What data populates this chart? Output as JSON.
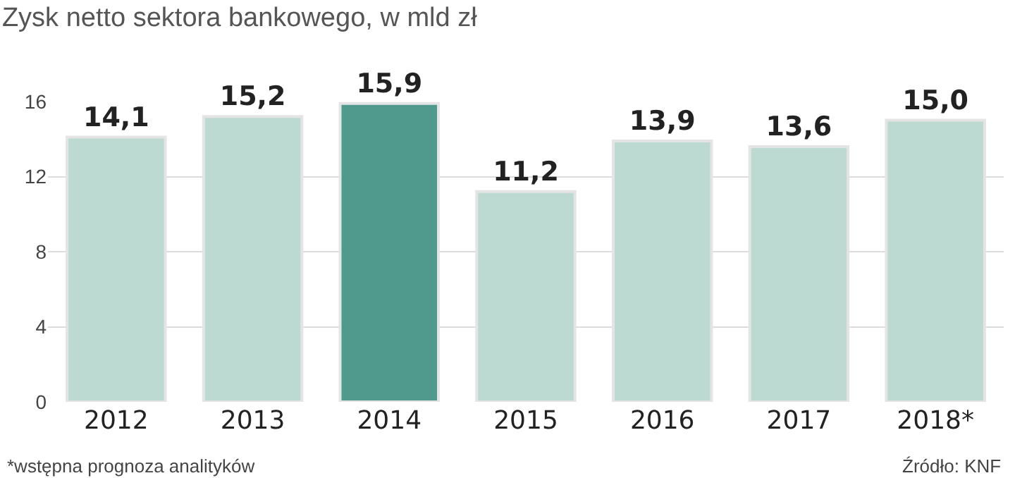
{
  "chart_data": {
    "type": "bar",
    "title": "Zysk netto sektora bankowego, w mld zł",
    "categories": [
      "2012",
      "2013",
      "2014",
      "2015",
      "2016",
      "2017",
      "2018*"
    ],
    "values": [
      14.1,
      15.2,
      15.9,
      11.2,
      13.9,
      13.6,
      15.0
    ],
    "value_labels": [
      "14,1",
      "15,2",
      "15,9",
      "11,2",
      "13,9",
      "13,6",
      "15,0"
    ],
    "colors": [
      "#bcdad1",
      "#bcdad1",
      "#4f9a8c",
      "#bcdad1",
      "#bcdad1",
      "#bcdad1",
      "#bcdad1"
    ],
    "ylim": [
      0,
      16
    ],
    "yticks": [
      0,
      4,
      8,
      12,
      16
    ],
    "grid": "y",
    "annotations": [
      "*wstępna prognoza analityków",
      "Źródło: KNF"
    ]
  }
}
